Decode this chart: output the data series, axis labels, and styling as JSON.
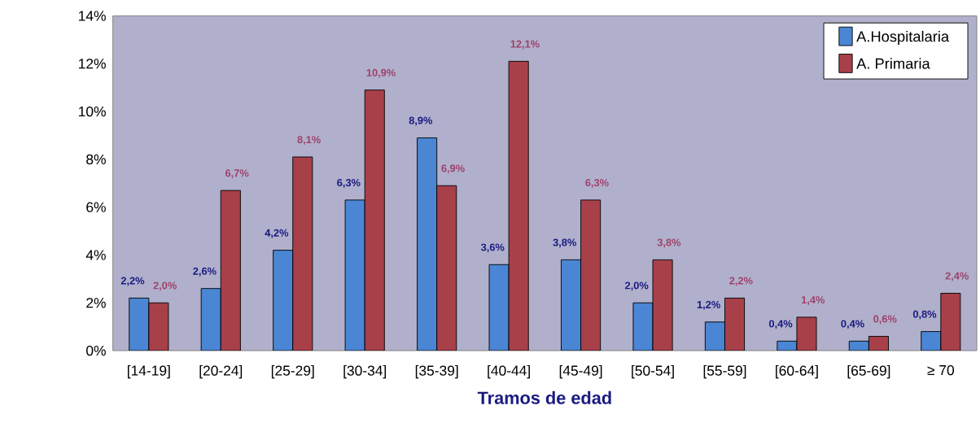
{
  "chart_data": {
    "type": "bar",
    "xlabel": "Tramos de edad",
    "categories": [
      "[14-19]",
      "[20-24]",
      "[25-29]",
      "[30-34]",
      "[35-39]",
      "[40-44]",
      "[45-49]",
      "[50-54]",
      "[55-59]",
      "[60-64]",
      "[65-69]",
      "≥ 70"
    ],
    "series": [
      {
        "name": "A.Hospitalaria",
        "color": "#4a86d4",
        "values": [
          2.2,
          2.6,
          4.2,
          6.3,
          8.9,
          3.6,
          3.8,
          2.0,
          1.2,
          0.4,
          0.4,
          0.8
        ],
        "value_labels": [
          "2,2%",
          "2,6%",
          "4,2%",
          "6,3%",
          "8,9%",
          "3,6%",
          "3,8%",
          "2,0%",
          "1,2%",
          "0,4%",
          "0,4%",
          "0,8%"
        ]
      },
      {
        "name": "A. Primaria",
        "color": "#a8404a",
        "values": [
          2.0,
          6.7,
          8.1,
          10.9,
          6.9,
          12.1,
          6.3,
          3.8,
          2.2,
          1.4,
          0.6,
          2.4
        ],
        "value_labels": [
          "2,0%",
          "6,7%",
          "8,1%",
          "10,9%",
          "6,9%",
          "12,1%",
          "6,3%",
          "3,8%",
          "2,2%",
          "1,4%",
          "0,6%",
          "2,4%"
        ]
      }
    ],
    "ylim": [
      0,
      14
    ],
    "yticks": [
      {
        "value": 0,
        "label": "0%"
      },
      {
        "value": 2,
        "label": "2%"
      },
      {
        "value": 4,
        "label": "4%"
      },
      {
        "value": 6,
        "label": "6%"
      },
      {
        "value": 8,
        "label": "8%"
      },
      {
        "value": 10,
        "label": "10%"
      },
      {
        "value": 12,
        "label": "12%"
      },
      {
        "value": 14,
        "label": "14%"
      }
    ],
    "legend": "top right"
  }
}
